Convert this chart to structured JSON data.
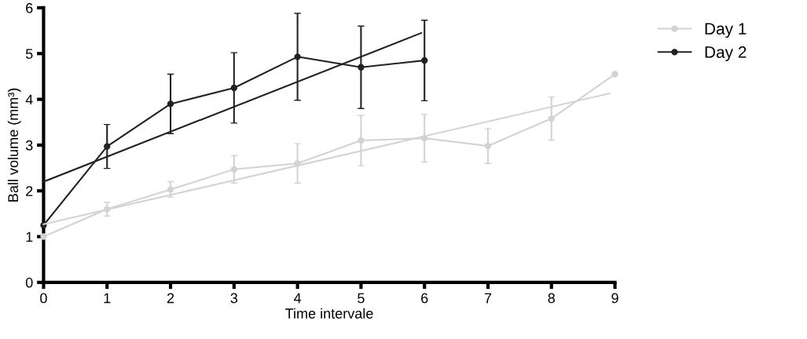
{
  "chart_data": {
    "type": "line",
    "xlabel": "Time intervale",
    "ylabel": "Ball volume (mm³)",
    "x": [
      0,
      1,
      2,
      3,
      4,
      5,
      6,
      7,
      8,
      9
    ],
    "xlim": [
      0,
      9
    ],
    "xticks": [
      0,
      1,
      2,
      3,
      4,
      5,
      6,
      7,
      8,
      9
    ],
    "ylim": [
      0,
      6
    ],
    "yticks": [
      0,
      1,
      2,
      3,
      4,
      5,
      6
    ],
    "grid": false,
    "legend": "top right",
    "marker": "circle",
    "line_style": "solid",
    "series": [
      {
        "name": "Day 1",
        "color": "#d3d3d3",
        "values": [
          1.0,
          1.6,
          2.03,
          2.47,
          2.6,
          3.1,
          3.15,
          2.98,
          3.58,
          4.55
        ],
        "errors": [
          null,
          0.15,
          0.17,
          0.3,
          0.43,
          0.55,
          0.52,
          0.38,
          0.47,
          null
        ]
      },
      {
        "name": "Day 2",
        "color": "#222222",
        "x": [
          0,
          1,
          2,
          3,
          4,
          5,
          6
        ],
        "values": [
          1.25,
          2.97,
          3.9,
          4.25,
          4.93,
          4.7,
          4.85
        ],
        "errors": [
          null,
          0.48,
          0.65,
          0.77,
          0.95,
          0.9,
          0.88
        ]
      },
      {
        "type": "line",
        "color": "#d3d3d3",
        "marker": "none",
        "x": [
          0,
          8.92
        ],
        "values": [
          1.27,
          4.13
        ]
      },
      {
        "type": "line",
        "color": "#222222",
        "marker": "none",
        "x": [
          0,
          5.95
        ],
        "values": [
          2.2,
          5.45
        ]
      }
    ]
  }
}
